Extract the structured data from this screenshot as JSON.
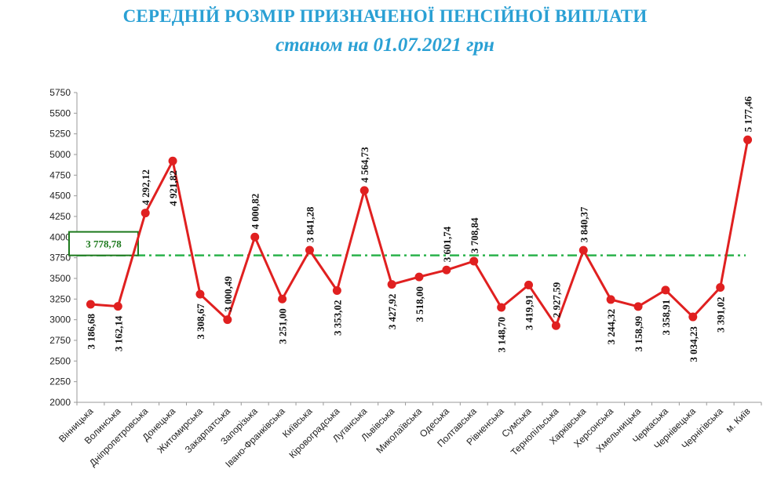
{
  "header": {
    "title": "СЕРЕДНІЙ РОЗМІР ПРИЗНАЧЕНОЇ ПЕНСІЙНОЇ ВИПЛАТИ",
    "subtitle": "станом на 01.07.2021 грн"
  },
  "colors": {
    "title": "#2aa0d4",
    "line": "#e02020",
    "average_line": "#2bb24c",
    "average_box": "#1e7a1e"
  },
  "chart_data": {
    "type": "line",
    "title": "СЕРЕДНІЙ РОЗМІР ПРИЗНАЧЕНОЇ ПЕНСІЙНОЇ ВИПЛАТИ",
    "subtitle": "станом на 01.07.2021 грн",
    "categories": [
      "Вінницька",
      "Волинська",
      "Дніпропетровська",
      "Донецька",
      "Житомирська",
      "Закарпатська",
      "Запорізька",
      "Івано-Франківська",
      "Київська",
      "Кіровоградська",
      "Луганська",
      "Львівська",
      "Миколаївська",
      "Одеська",
      "Полтавська",
      "Рівненська",
      "Сумська",
      "Тернопільська",
      "Харківська",
      "Херсонська",
      "Хмельницька",
      "Черкаська",
      "Чернівецька",
      "Чернігівська",
      "м. Київ"
    ],
    "values": [
      3186.68,
      3162.14,
      4292.12,
      4921.82,
      3308.67,
      3000.49,
      4000.82,
      3251.0,
      3841.28,
      3353.02,
      4564.73,
      3427.92,
      3518.0,
      3601.74,
      3708.84,
      3148.7,
      3419.91,
      2927.59,
      3840.37,
      3244.32,
      3158.99,
      3358.91,
      3034.23,
      3391.02,
      5177.46
    ],
    "data_labels": [
      "3 186,68",
      "3 162,14",
      "4 292,12",
      "4 921,82",
      "3 308,67",
      "3 000,49",
      "4 000,82",
      "3 251,00",
      "3 841,28",
      "3 353,02",
      "4 564,73",
      "3 427,92",
      "3 518,00",
      "3 601,74",
      "3 708,84",
      "3 148,70",
      "3 419,91",
      "2 927,59",
      "3 840,37",
      "3 244,32",
      "3 158,99",
      "3 358,91",
      "3 034,23",
      "3 391,02",
      "5 177,46"
    ],
    "label_side": [
      "below",
      "below",
      "above",
      "below",
      "below",
      "above",
      "above",
      "below",
      "above",
      "below",
      "above",
      "below",
      "below",
      "above",
      "above",
      "below",
      "below",
      "above",
      "above",
      "below",
      "below",
      "below",
      "below",
      "below",
      "above"
    ],
    "average": {
      "value": 3778.78,
      "label": "3 778,78"
    },
    "ylim": [
      2000,
      5750
    ],
    "yticks": [
      2000,
      2250,
      2500,
      2750,
      3000,
      3250,
      3500,
      3750,
      4000,
      4250,
      4500,
      4750,
      5000,
      5250,
      5500,
      5750
    ],
    "grid": false,
    "legend": "none"
  }
}
